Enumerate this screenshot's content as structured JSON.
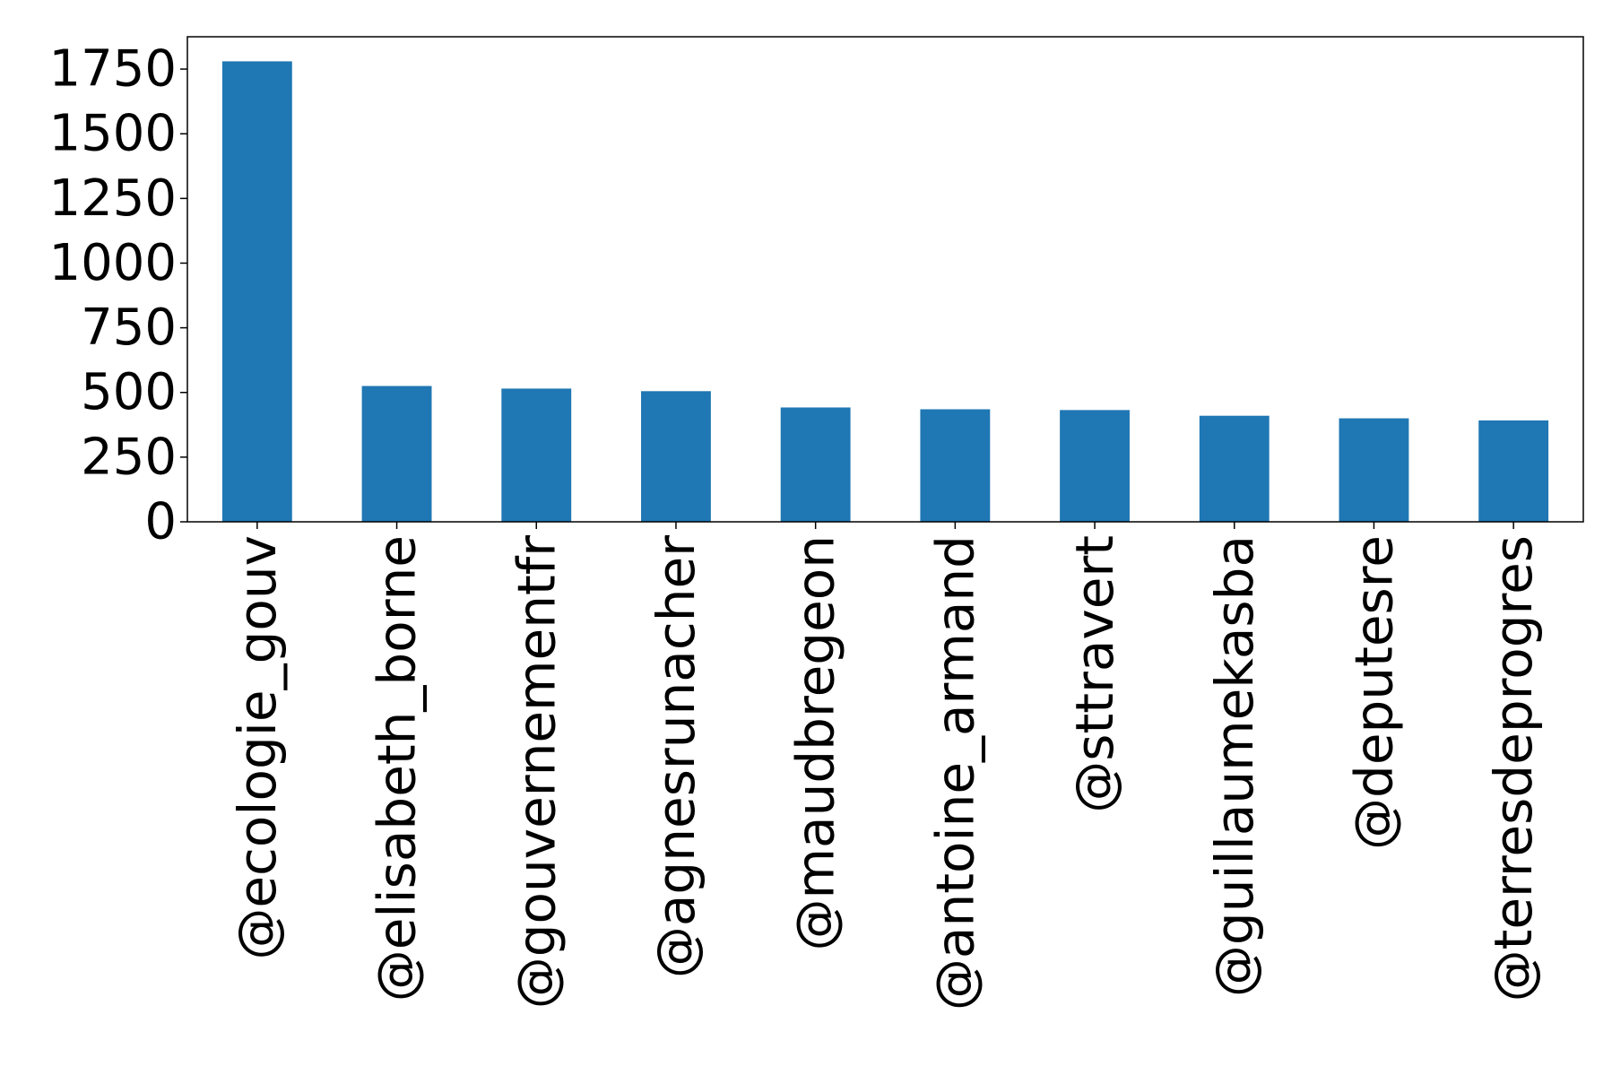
{
  "chart_data": {
    "type": "bar",
    "title": "",
    "xlabel": "",
    "ylabel": "",
    "categories": [
      "@ecologie_gouv",
      "@elisabeth_borne",
      "@gouvernementfr",
      "@agnesrunacher",
      "@maudbregeon",
      "@antoine_armand",
      "@sttravert",
      "@guillaumekasba",
      "@deputesre",
      "@terresdeprogres"
    ],
    "values": [
      1780,
      525,
      515,
      505,
      442,
      435,
      432,
      410,
      400,
      392
    ],
    "ylim": [
      0,
      1875
    ],
    "yticks": [
      0,
      250,
      500,
      750,
      1000,
      1250,
      1500,
      1750
    ],
    "bar_color": "#1f77b4",
    "grid": false,
    "legend": "none"
  }
}
